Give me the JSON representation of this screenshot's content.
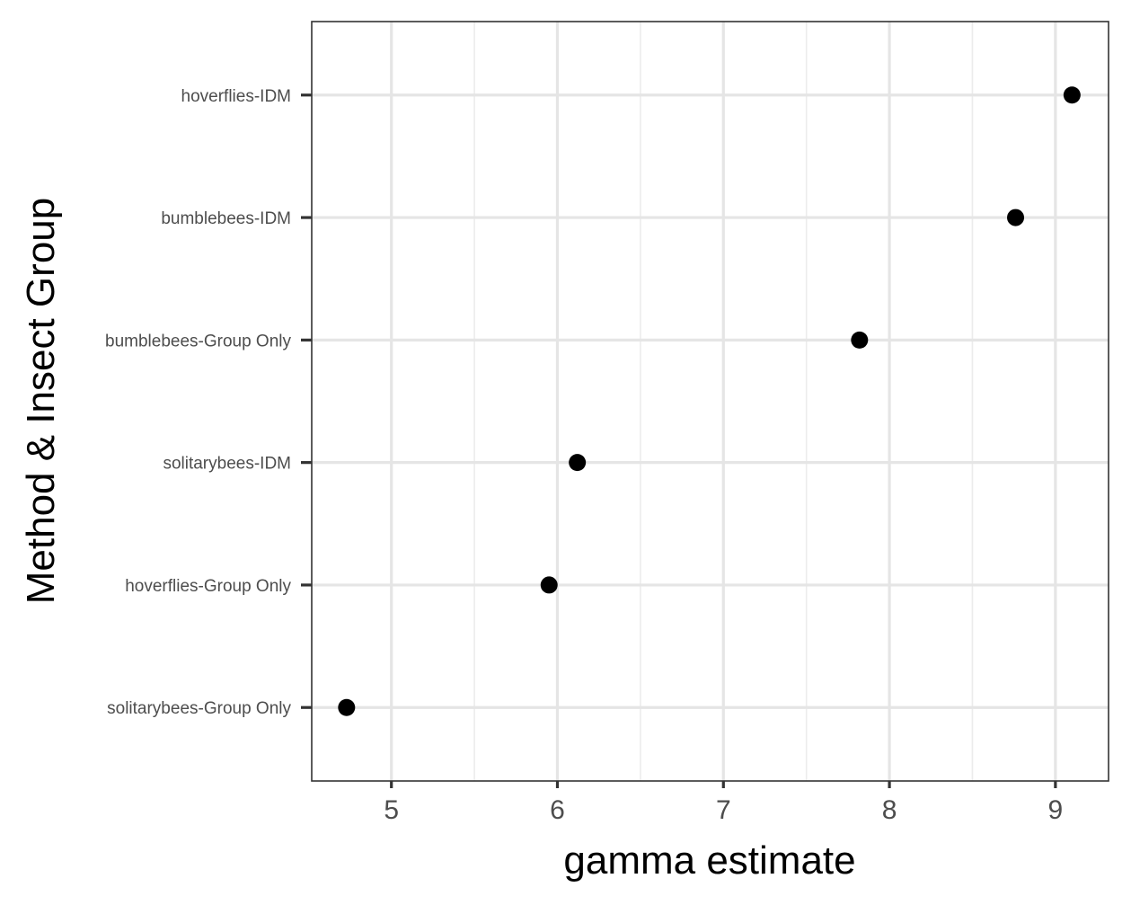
{
  "chart_data": {
    "type": "scatter",
    "title": "",
    "xlabel": "gamma estimate",
    "ylabel": "Method & Insect Group",
    "xlim": [
      4.52,
      9.32
    ],
    "x_ticks": [
      5,
      6,
      7,
      8,
      9
    ],
    "x_tick_labels": [
      "5",
      "6",
      "7",
      "8",
      "9"
    ],
    "categories": [
      "solitarybees-Group Only",
      "hoverflies-Group Only",
      "solitarybees-IDM",
      "bumblebees-Group Only",
      "bumblebees-IDM",
      "hoverflies-IDM"
    ],
    "values": [
      4.73,
      5.95,
      6.12,
      7.82,
      8.76,
      9.1
    ],
    "grid": true,
    "legend": "none",
    "point_color": "#000000"
  }
}
